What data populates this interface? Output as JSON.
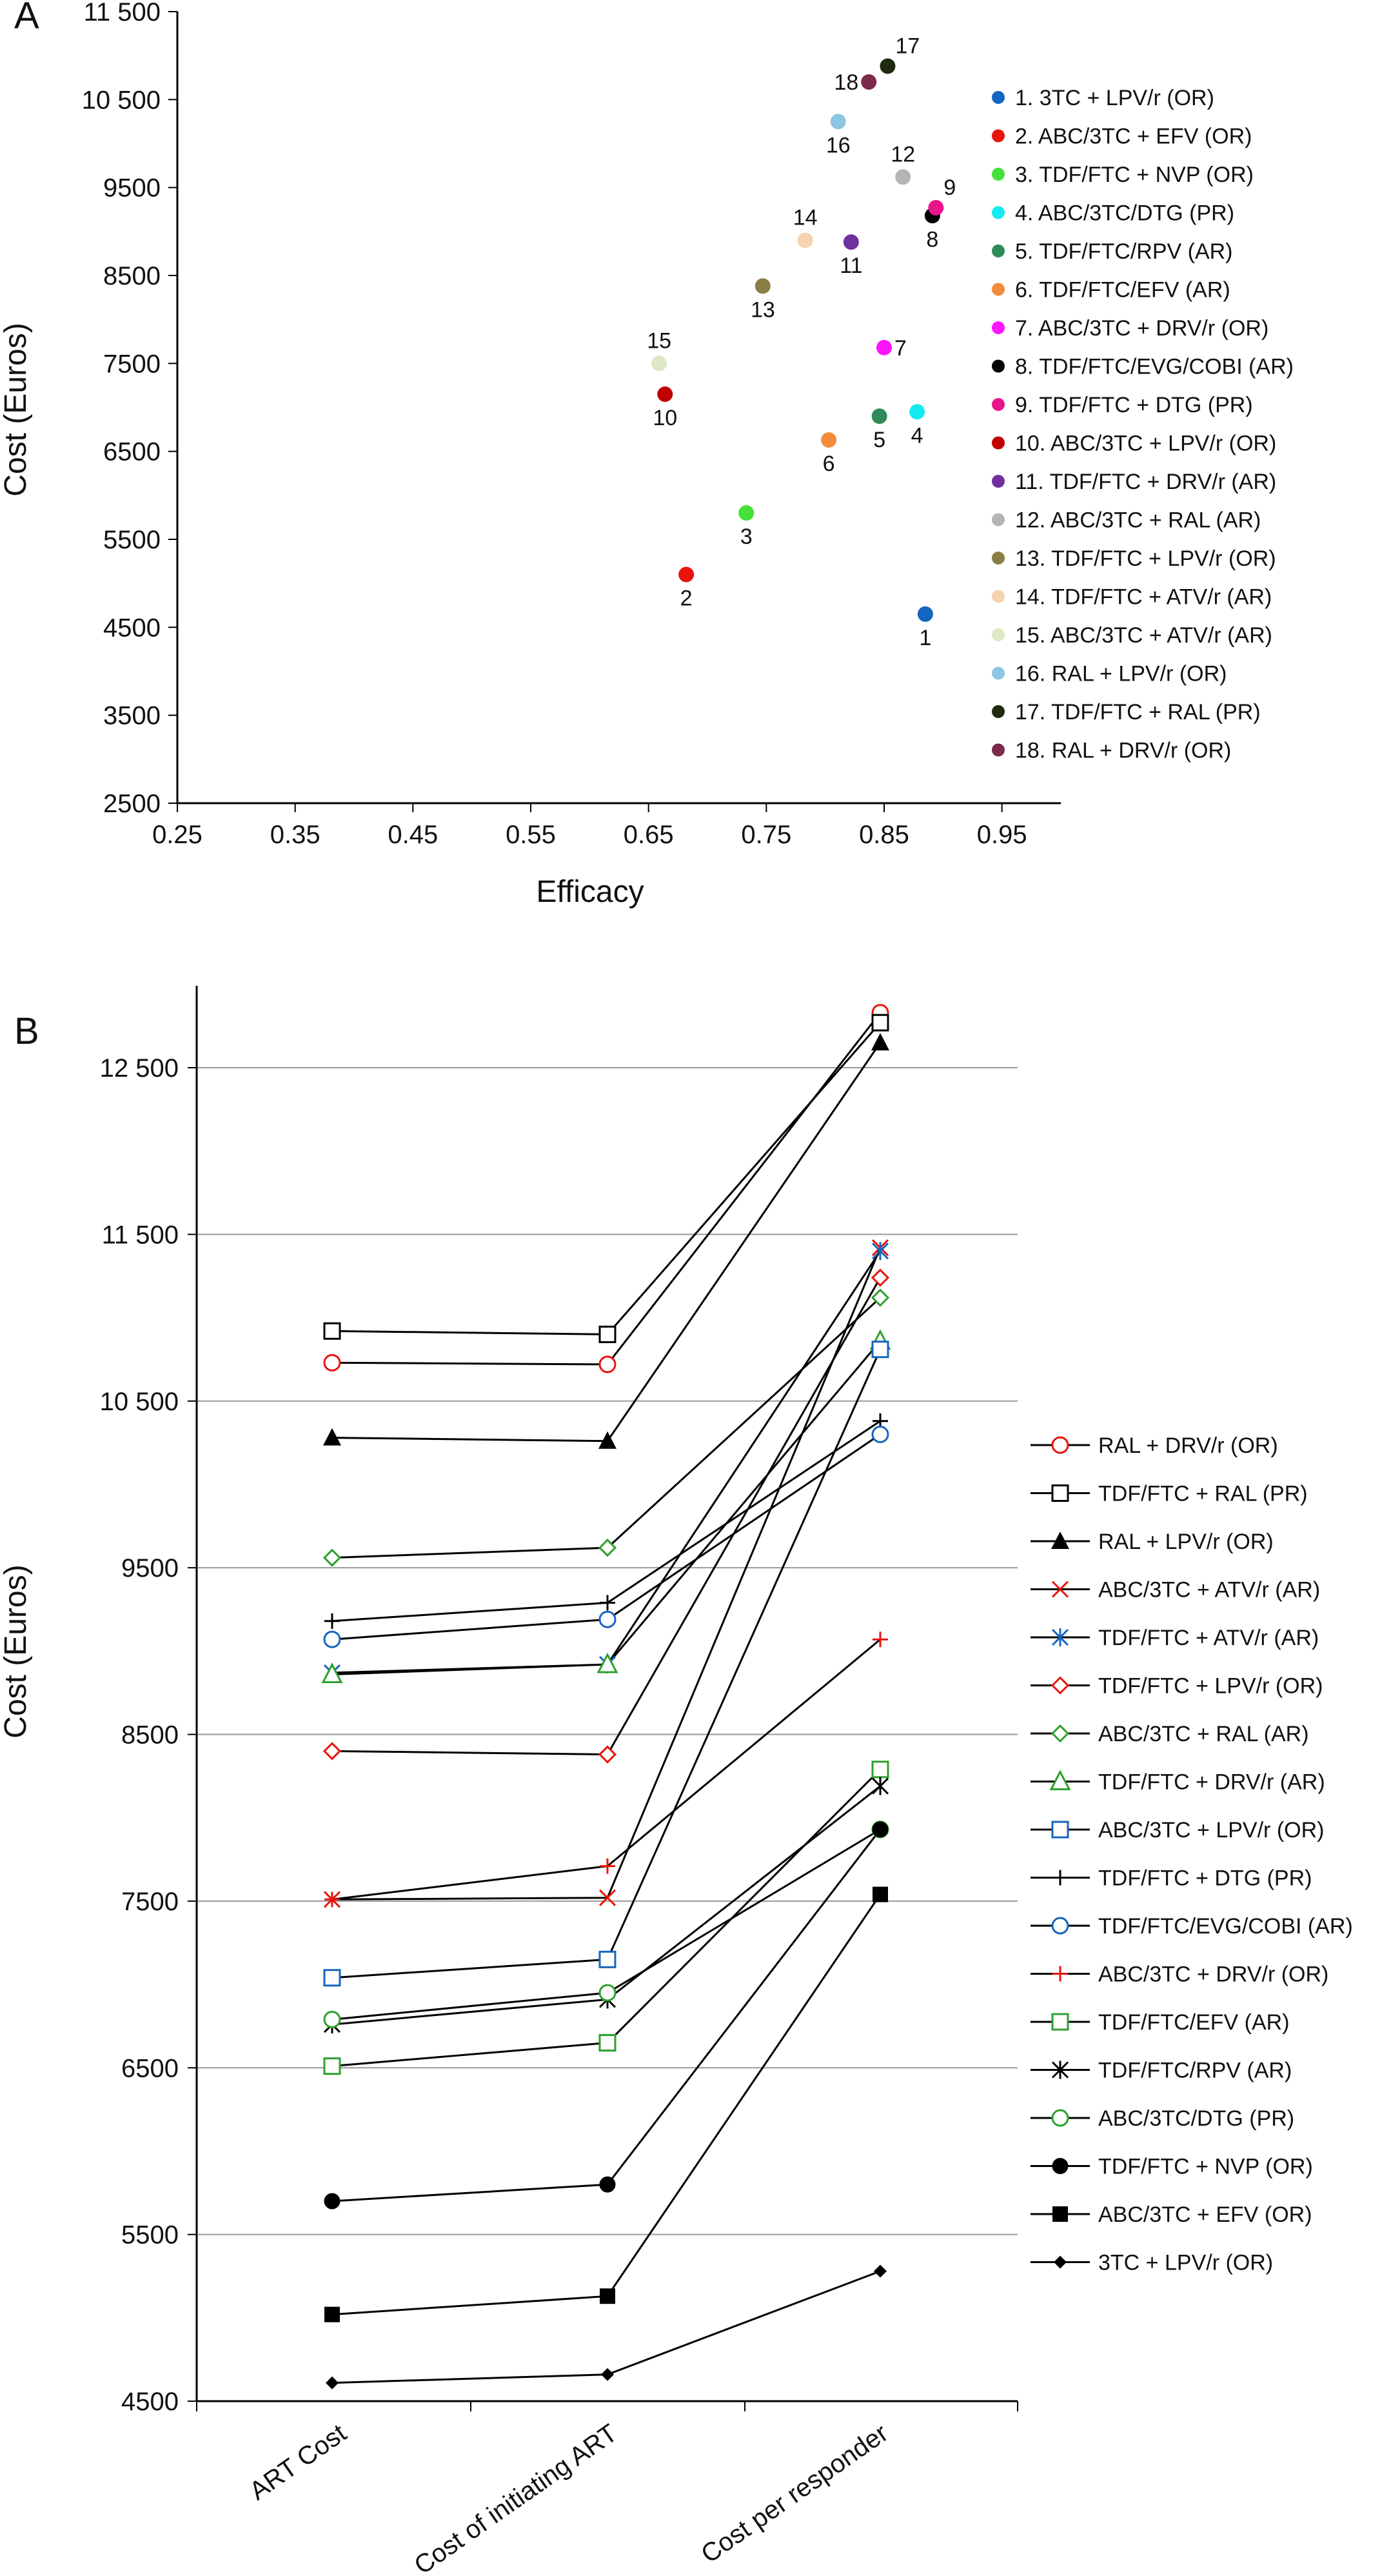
{
  "chart_data": [
    {
      "type": "scatter",
      "panel_label": "A",
      "title": "",
      "xlabel": "Efficacy",
      "ylabel": "Cost (Euros)",
      "xlim": [
        0.25,
        1.0
      ],
      "ylim": [
        2500,
        11500
      ],
      "x_ticks": [
        "0.25",
        "0.35",
        "0.45",
        "0.55",
        "0.65",
        "0.75",
        "0.85",
        "0.95"
      ],
      "y_ticks": [
        "2500",
        "3500",
        "4500",
        "5500",
        "6500",
        "7500",
        "8500",
        "9500",
        "10 500",
        "11 500"
      ],
      "legend_position": "right",
      "points": [
        {
          "label": "1",
          "name": "1. 3TC + LPV/r (OR)",
          "x": 0.885,
          "y": 4650,
          "color": "#1565c0",
          "label_pos": "below"
        },
        {
          "label": "2",
          "name": "2. ABC/3TC + EFV (OR)",
          "x": 0.682,
          "y": 5100,
          "color": "#e8140c",
          "label_pos": "below"
        },
        {
          "label": "3",
          "name": "3. TDF/FTC + NVP (OR)",
          "x": 0.733,
          "y": 5800,
          "color": "#45e03a",
          "label_pos": "below"
        },
        {
          "label": "4",
          "name": "4. ABC/3TC/DTG (PR)",
          "x": 0.878,
          "y": 6950,
          "color": "#12ecf0",
          "label_pos": "below"
        },
        {
          "label": "5",
          "name": "5. TDF/FTC/RPV (AR)",
          "x": 0.846,
          "y": 6900,
          "color": "#2e8b57",
          "label_pos": "below"
        },
        {
          "label": "6",
          "name": "6. TDF/FTC/EFV (AR)",
          "x": 0.803,
          "y": 6630,
          "color": "#f28c3c",
          "label_pos": "below"
        },
        {
          "label": "7",
          "name": "7. ABC/3TC + DRV/r (OR)",
          "x": 0.85,
          "y": 7680,
          "color": "#ff14ff",
          "label_pos": "right"
        },
        {
          "label": "8",
          "name": "8. TDF/FTC/EVG/COBI (AR)",
          "x": 0.891,
          "y": 9180,
          "color": "#000000",
          "label_pos": "below"
        },
        {
          "label": "9",
          "name": "9. TDF/FTC + DTG (PR)",
          "x": 0.894,
          "y": 9270,
          "color": "#e8148c",
          "label_pos": "above-right"
        },
        {
          "label": "10",
          "name": "10. ABC/3TC + LPV/r (OR)",
          "x": 0.664,
          "y": 7150,
          "color": "#c00000",
          "label_pos": "below"
        },
        {
          "label": "11",
          "name": "11. TDF/FTC + DRV/r (AR)",
          "x": 0.822,
          "y": 8880,
          "color": "#7030a0",
          "label_pos": "below"
        },
        {
          "label": "12",
          "name": "12. ABC/3TC + RAL (AR)",
          "x": 0.866,
          "y": 9620,
          "color": "#b4b4b4",
          "label_pos": "above"
        },
        {
          "label": "13",
          "name": "13. TDF/FTC + LPV/r (OR)",
          "x": 0.747,
          "y": 8380,
          "color": "#8b7d46",
          "label_pos": "below"
        },
        {
          "label": "14",
          "name": "14. TDF/FTC + ATV/r (AR)",
          "x": 0.783,
          "y": 8900,
          "color": "#f5d2b0",
          "label_pos": "above"
        },
        {
          "label": "15",
          "name": "15. ABC/3TC + ATV/r (AR)",
          "x": 0.659,
          "y": 7500,
          "color": "#dde8c4",
          "label_pos": "above"
        },
        {
          "label": "16",
          "name": "16. RAL + LPV/r (OR)",
          "x": 0.811,
          "y": 10250,
          "color": "#8ec5e2",
          "label_pos": "below"
        },
        {
          "label": "17",
          "name": "17. TDF/FTC + RAL (PR)",
          "x": 0.853,
          "y": 10880,
          "color": "#1f2b0e",
          "label_pos": "above-right"
        },
        {
          "label": "18",
          "name": "18. RAL + DRV/r (OR)",
          "x": 0.837,
          "y": 10700,
          "color": "#7b2a4a",
          "label_pos": "left"
        }
      ]
    },
    {
      "type": "line",
      "panel_label": "B",
      "title": "",
      "xlabel": "",
      "ylabel": "Cost (Euros)",
      "ylim": [
        4500,
        12900
      ],
      "gridlines": [
        5500,
        6500,
        7500,
        8500,
        9500,
        10500,
        11500,
        12500
      ],
      "y_ticks": [
        "4500",
        "5500",
        "6500",
        "7500",
        "8500",
        "9500",
        "10 500",
        "11 500",
        "12 500"
      ],
      "categories": [
        "ART Cost",
        "Cost of initiating ART",
        "Cost per responder"
      ],
      "legend_position": "right",
      "series": [
        {
          "name": "RAL + DRV/r (OR)",
          "values": [
            10730,
            10720,
            12830
          ],
          "marker": "circle-open",
          "color": "#e8140c"
        },
        {
          "name": "TDF/FTC + RAL (PR)",
          "values": [
            10920,
            10900,
            12770
          ],
          "marker": "square-open",
          "color": "#000000"
        },
        {
          "name": "RAL + LPV/r (OR)",
          "values": [
            10280,
            10260,
            12650
          ],
          "marker": "triangle-filled",
          "color": "#000000"
        },
        {
          "name": "ABC/3TC + ATV/r (AR)",
          "values": [
            7510,
            7520,
            11420
          ],
          "marker": "x",
          "color": "#e8140c"
        },
        {
          "name": "TDF/FTC + ATV/r (AR)",
          "values": [
            8870,
            8920,
            11400
          ],
          "marker": "asterisk",
          "color": "#1565c0"
        },
        {
          "name": "TDF/FTC + LPV/r (OR)",
          "values": [
            8400,
            8380,
            11240
          ],
          "marker": "diamond-open",
          "color": "#e8140c"
        },
        {
          "name": "ABC/3TC + RAL (AR)",
          "values": [
            9560,
            9620,
            11120
          ],
          "marker": "diamond-open",
          "color": "#2ca02c"
        },
        {
          "name": "TDF/FTC + DRV/r (AR)",
          "values": [
            8860,
            8920,
            10860
          ],
          "marker": "triangle-open",
          "color": "#2ca02c"
        },
        {
          "name": "ABC/3TC + LPV/r (OR)",
          "values": [
            7040,
            7150,
            10810
          ],
          "marker": "square-open",
          "color": "#1565c0"
        },
        {
          "name": "TDF/FTC + DTG (PR)",
          "values": [
            9180,
            9290,
            10380
          ],
          "marker": "plus",
          "color": "#000000"
        },
        {
          "name": "TDF/FTC/EVG/COBI (AR)",
          "values": [
            9070,
            9190,
            10300
          ],
          "marker": "circle-open",
          "color": "#1565c0"
        },
        {
          "name": "ABC/3TC + DRV/r (OR)",
          "values": [
            7510,
            7710,
            9070
          ],
          "marker": "plus",
          "color": "#e8140c"
        },
        {
          "name": "TDF/FTC/EFV (AR)",
          "values": [
            6510,
            6650,
            8290
          ],
          "marker": "square-open",
          "color": "#2ca02c"
        },
        {
          "name": "TDF/FTC/RPV (AR)",
          "values": [
            6760,
            6910,
            8190
          ],
          "marker": "asterisk",
          "color": "#000000"
        },
        {
          "name": "ABC/3TC/DTG (PR)",
          "values": [
            6790,
            6950,
            7930
          ],
          "marker": "circle-open",
          "color": "#2ca02c"
        },
        {
          "name": "TDF/FTC + NVP (OR)",
          "values": [
            5700,
            5800,
            7930
          ],
          "marker": "circle-filled",
          "color": "#000000"
        },
        {
          "name": "ABC/3TC + EFV (OR)",
          "values": [
            5020,
            5130,
            7540
          ],
          "marker": "square-filled",
          "color": "#000000"
        },
        {
          "name": "3TC + LPV/r (OR)",
          "values": [
            4610,
            4660,
            5280
          ],
          "marker": "diamond-filled",
          "color": "#000000"
        }
      ]
    }
  ]
}
